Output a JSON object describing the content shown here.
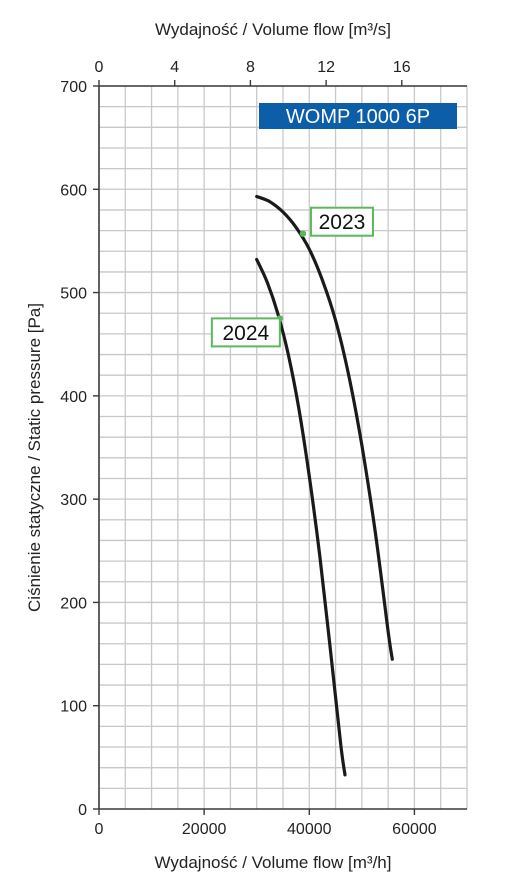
{
  "chart_data": {
    "type": "line",
    "model_label": "WOMP 1000 6P",
    "xlabel": "Wydajność / Volume flow [m³/h]",
    "x2label": "Wydajność / Volume flow [m³/s]",
    "ylabel": "Ciśnienie statyczne / Static pressure [Pa]",
    "xlim": [
      0,
      70000
    ],
    "ylim": [
      0,
      700
    ],
    "x_ticks": [
      "0",
      "20000",
      "40000",
      "60000"
    ],
    "x_tick_values": [
      0,
      20000,
      40000,
      60000
    ],
    "x2_ticks": [
      "0",
      "4",
      "8",
      "12",
      "16"
    ],
    "x2_tick_values": [
      0,
      4,
      8,
      12,
      16
    ],
    "y_ticks": [
      "0",
      "100",
      "200",
      "300",
      "400",
      "500",
      "600",
      "700"
    ],
    "y_tick_values": [
      0,
      100,
      200,
      300,
      400,
      500,
      600,
      700
    ],
    "grid": true,
    "series": [
      {
        "name": "2023",
        "x": [
          30000,
          32500,
          35000,
          37500,
          40000,
          42500,
          45000,
          47500,
          50000,
          52500,
          55000,
          55800
        ],
        "y": [
          593,
          588,
          578,
          563,
          542,
          512,
          473,
          420,
          352,
          270,
          172,
          145
        ],
        "marker": {
          "x": 38800,
          "y": 557
        }
      },
      {
        "name": "2024",
        "x": [
          30000,
          32000,
          34000,
          36000,
          38000,
          40000,
          42000,
          44000,
          46000,
          46800
        ],
        "y": [
          532,
          510,
          480,
          440,
          388,
          322,
          245,
          155,
          62,
          33
        ],
        "marker": {
          "x": 34400,
          "y": 475
        }
      }
    ]
  },
  "colors": {
    "curve": "#1a1a1a",
    "callout_border": "#5cb85c",
    "model_badge": "#0c5ea8",
    "grid": "#c8c8c8"
  }
}
